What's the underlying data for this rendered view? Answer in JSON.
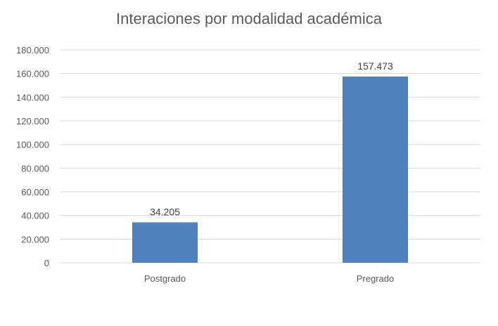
{
  "chart_data": {
    "type": "bar",
    "title": "Interaciones por modalidad académica",
    "categories": [
      "Postgrado",
      "Pregrado"
    ],
    "values": [
      34205,
      157473
    ],
    "data_labels": [
      "34.205",
      "157.473"
    ],
    "ylim": [
      0,
      180000
    ],
    "yticks": [
      0,
      20000,
      40000,
      60000,
      80000,
      100000,
      120000,
      140000,
      160000,
      180000
    ],
    "ytick_labels": [
      "0",
      "20.000",
      "40.000",
      "60.000",
      "80.000",
      "100.000",
      "120.000",
      "140.000",
      "160.000",
      "180.000"
    ],
    "grid": true,
    "legend": "none",
    "bar_color": "#4f81bd",
    "grid_color": "#d9d9d9"
  }
}
